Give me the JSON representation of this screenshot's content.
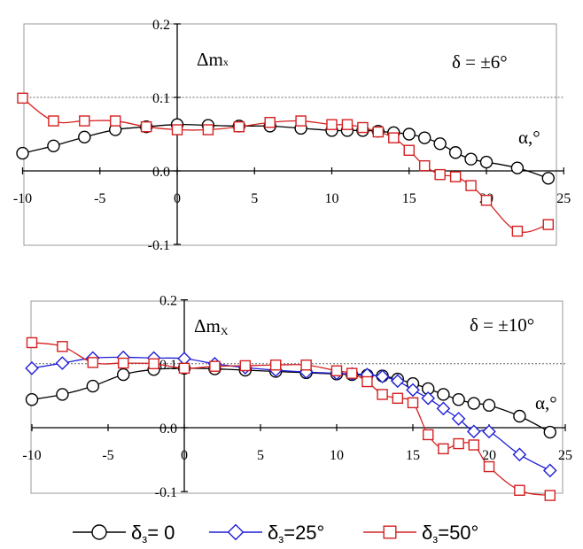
{
  "colors": {
    "s0": "#000000",
    "s25": "#1f1fd6",
    "s50": "#d42020",
    "ref": "#666666",
    "frame": "#999999"
  },
  "legend": [
    {
      "marker": "circle",
      "color": "#000000",
      "label_main": "δ",
      "label_sub": "з",
      "label_rest": "= 0"
    },
    {
      "marker": "diamond",
      "color": "#1f1fd6",
      "label_main": "δ",
      "label_sub": "з",
      "label_rest": "=25°"
    },
    {
      "marker": "square",
      "color": "#d42020",
      "label_main": "δ",
      "label_sub": "з",
      "label_rest": "=50°"
    }
  ],
  "chart_data": [
    {
      "type": "line",
      "ylabel_main": "Δm",
      "ylabel_sub": "x",
      "annotation": "δ = ±6°",
      "xlabel": "α,°",
      "xlim": [
        -10,
        25
      ],
      "ylim": [
        -0.1,
        0.2
      ],
      "xticks": [
        "-10",
        "-5",
        "0",
        "5",
        "10",
        "15",
        "20",
        "25"
      ],
      "yticks": [
        "0.2",
        "0.1",
        "0.0",
        "-0.1"
      ],
      "reference_line": 0.1,
      "series": [
        {
          "marker": "circle",
          "color": "#000000",
          "x": [
            -10,
            -8,
            -6,
            -4,
            -2,
            0,
            2,
            4,
            6,
            8,
            10,
            11,
            12,
            13,
            14,
            15,
            16,
            17,
            18,
            19,
            20,
            22,
            24
          ],
          "y": [
            0.024,
            0.034,
            0.046,
            0.056,
            0.06,
            0.063,
            0.062,
            0.061,
            0.061,
            0.058,
            0.055,
            0.055,
            0.055,
            0.054,
            0.052,
            0.05,
            0.045,
            0.037,
            0.025,
            0.016,
            0.012,
            0.004,
            -0.01
          ]
        },
        {
          "marker": "square",
          "color": "#d42020",
          "x": [
            -10,
            -8,
            -6,
            -4,
            -2,
            0,
            2,
            4,
            6,
            8,
            10,
            11,
            12,
            13,
            14,
            15,
            16,
            17,
            18,
            19,
            20,
            22,
            24
          ],
          "y": [
            0.099,
            0.068,
            0.068,
            0.068,
            0.06,
            0.056,
            0.056,
            0.06,
            0.066,
            0.068,
            0.063,
            0.063,
            0.059,
            0.053,
            0.045,
            0.028,
            0.007,
            -0.005,
            -0.008,
            -0.02,
            -0.04,
            -0.082,
            -0.073
          ]
        }
      ]
    },
    {
      "type": "line",
      "ylabel_main": "Δm",
      "ylabel_sub": "X",
      "annotation": "δ = ±10°",
      "xlabel": "α,°",
      "xlim": [
        -10,
        25
      ],
      "ylim": [
        -0.1,
        0.2
      ],
      "xticks": [
        "-10",
        "-5",
        "0",
        "5",
        "10",
        "15",
        "20",
        "25"
      ],
      "yticks": [
        "0.2",
        "0.1",
        "0.0",
        "-0.1"
      ],
      "reference_line": 0.1,
      "series": [
        {
          "marker": "circle",
          "color": "#000000",
          "x": [
            -10,
            -8,
            -6,
            -4,
            -2,
            0,
            2,
            4,
            6,
            8,
            10,
            11,
            12,
            13,
            14,
            15,
            16,
            17,
            18,
            19,
            20,
            22,
            24
          ],
          "y": [
            0.044,
            0.052,
            0.065,
            0.083,
            0.091,
            0.093,
            0.092,
            0.09,
            0.088,
            0.086,
            0.084,
            0.083,
            0.082,
            0.081,
            0.076,
            0.069,
            0.061,
            0.052,
            0.044,
            0.038,
            0.035,
            0.018,
            -0.007
          ]
        },
        {
          "marker": "diamond",
          "color": "#1f1fd6",
          "x": [
            -10,
            -8,
            -6,
            -4,
            -2,
            0,
            2,
            4,
            6,
            8,
            10,
            11,
            12,
            13,
            14,
            15,
            16,
            17,
            18,
            19,
            20,
            22,
            24
          ],
          "y": [
            0.093,
            0.101,
            0.109,
            0.11,
            0.109,
            0.108,
            0.1,
            0.094,
            0.09,
            0.087,
            0.085,
            0.084,
            0.083,
            0.08,
            0.073,
            0.059,
            0.046,
            0.03,
            0.014,
            -0.006,
            -0.006,
            -0.042,
            -0.067
          ]
        },
        {
          "marker": "square",
          "color": "#d42020",
          "x": [
            -10,
            -8,
            -6,
            -4,
            -2,
            0,
            2,
            4,
            6,
            8,
            10,
            11,
            12,
            13,
            14,
            15,
            16,
            17,
            18,
            19,
            20,
            22,
            24
          ],
          "y": [
            0.133,
            0.127,
            0.102,
            0.101,
            0.1,
            0.093,
            0.096,
            0.097,
            0.098,
            0.098,
            0.089,
            0.085,
            0.072,
            0.052,
            0.046,
            0.039,
            -0.011,
            -0.033,
            -0.025,
            -0.027,
            -0.061,
            -0.098,
            -0.106
          ]
        }
      ]
    }
  ]
}
